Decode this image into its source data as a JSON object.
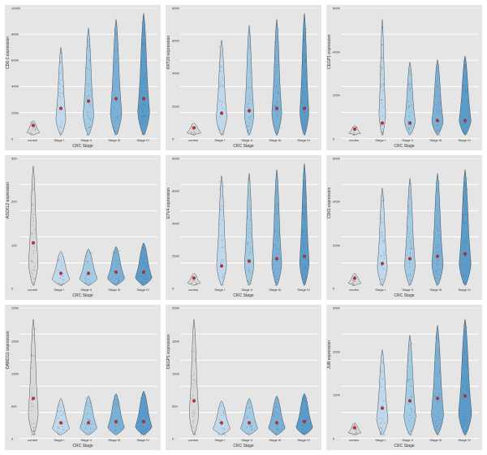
{
  "figure": {
    "background": "#ffffff",
    "panel_bg": "#e5e5e5",
    "grid_color": "#ffffff",
    "grid_lines_y": 5,
    "xlabel": "CRC Stage",
    "xlabel_fontsize": 5,
    "ylabel_fontsize": 5,
    "tick_fontsize": 4,
    "categories": [
      "control",
      "Stage I",
      "Stage II",
      "Stage III",
      "Stage IV"
    ],
    "colors": [
      "#d9d9d9",
      "#bfd8ec",
      "#a3cbe3",
      "#7bb0d6",
      "#5a9bc9"
    ],
    "median_color": "#d62728",
    "violin_stroke": "#333333",
    "panels": [
      {
        "gene": "CD6-1",
        "ylim": [
          0,
          10000
        ],
        "ytick_step": 2000,
        "heights": [
          0.12,
          0.72,
          0.88,
          0.95,
          1.0
        ],
        "widths": [
          0.55,
          0.42,
          0.45,
          0.48,
          0.5
        ],
        "medians": [
          0.08,
          0.22,
          0.28,
          0.3,
          0.3
        ]
      },
      {
        "gene": "KRT20",
        "ylim": [
          0,
          8000
        ],
        "ytick_step": 2000,
        "heights": [
          0.1,
          0.78,
          0.9,
          0.95,
          1.0
        ],
        "widths": [
          0.6,
          0.45,
          0.4,
          0.42,
          0.38
        ],
        "medians": [
          0.06,
          0.18,
          0.2,
          0.22,
          0.22
        ]
      },
      {
        "gene": "CEGP1",
        "ylim": [
          0,
          6000
        ],
        "ytick_step": 2000,
        "heights": [
          0.08,
          0.95,
          0.6,
          0.62,
          0.65
        ],
        "widths": [
          0.5,
          0.28,
          0.45,
          0.48,
          0.5
        ],
        "medians": [
          0.05,
          0.1,
          0.1,
          0.12,
          0.12
        ]
      },
      {
        "gene": "ASCKL2",
        "ylim": [
          0,
          300
        ],
        "ytick_step": 100,
        "heights": [
          0.98,
          0.28,
          0.3,
          0.32,
          0.35
        ],
        "widths": [
          0.4,
          0.75,
          0.75,
          0.72,
          0.7
        ],
        "medians": [
          0.35,
          0.1,
          0.1,
          0.11,
          0.11
        ]
      },
      {
        "gene": "ETV4",
        "ylim": [
          0,
          8000
        ],
        "ytick_step": 2000,
        "heights": [
          0.1,
          0.9,
          0.92,
          0.95,
          1.0
        ],
        "widths": [
          0.55,
          0.42,
          0.4,
          0.42,
          0.4
        ],
        "medians": [
          0.06,
          0.16,
          0.2,
          0.22,
          0.24
        ]
      },
      {
        "gene": "CD61",
        "ylim": [
          0,
          6000
        ],
        "ytick_step": 2000,
        "heights": [
          0.1,
          0.8,
          0.88,
          0.92,
          0.95
        ],
        "widths": [
          0.55,
          0.42,
          0.45,
          0.48,
          0.5
        ],
        "medians": [
          0.06,
          0.18,
          0.22,
          0.24,
          0.26
        ]
      },
      {
        "gene": "DANCG1",
        "ylim": [
          0,
          2000
        ],
        "ytick_step": 500,
        "heights": [
          0.95,
          0.3,
          0.32,
          0.34,
          0.36
        ],
        "widths": [
          0.42,
          0.72,
          0.72,
          0.7,
          0.7
        ],
        "medians": [
          0.3,
          0.1,
          0.1,
          0.11,
          0.11
        ]
      },
      {
        "gene": "DEGP1",
        "ylim": [
          0,
          2000
        ],
        "ytick_step": 500,
        "heights": [
          0.95,
          0.28,
          0.3,
          0.32,
          0.34
        ],
        "widths": [
          0.4,
          0.72,
          0.72,
          0.7,
          0.7
        ],
        "medians": [
          0.28,
          0.1,
          0.1,
          0.1,
          0.11
        ]
      },
      {
        "gene": "JUB",
        "ylim": [
          0,
          3000
        ],
        "ytick_step": 1000,
        "heights": [
          0.1,
          0.7,
          0.82,
          0.9,
          0.95
        ],
        "widths": [
          0.55,
          0.48,
          0.5,
          0.52,
          0.55
        ],
        "medians": [
          0.06,
          0.22,
          0.28,
          0.3,
          0.32
        ]
      }
    ]
  }
}
